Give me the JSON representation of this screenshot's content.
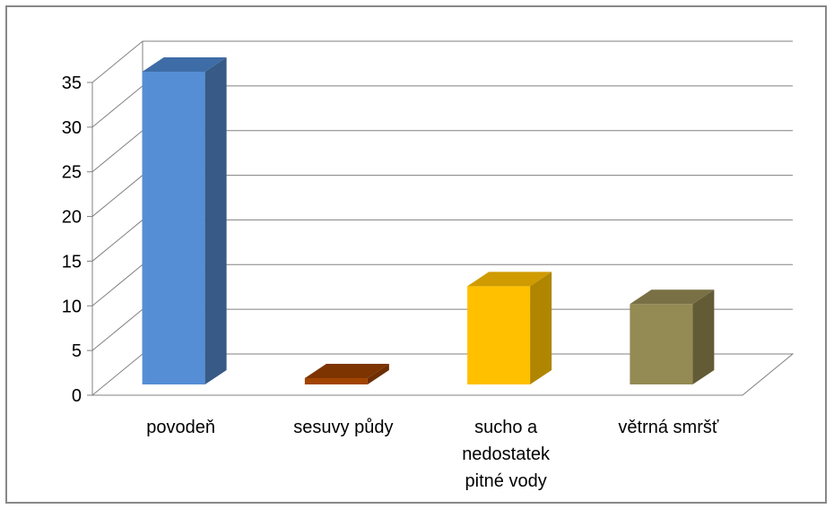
{
  "chart_data": {
    "type": "bar",
    "style": "3d-column",
    "title": "",
    "xlabel": "",
    "ylabel": "",
    "categories": [
      [
        "povodeň"
      ],
      [
        "sesuvy půdy"
      ],
      [
        "sucho a",
        "nedostatek",
        "pitné vody"
      ],
      [
        "větrná smršť"
      ]
    ],
    "values": [
      35,
      0.7,
      11,
      9
    ],
    "ylim": [
      0,
      35
    ],
    "yticks": [
      "0",
      "5",
      "10",
      "15",
      "20",
      "25",
      "30",
      "35"
    ],
    "grid": true,
    "legend": "none",
    "colors": {
      "front": [
        "#558ED5",
        "#A14400",
        "#FFC000",
        "#948A54"
      ],
      "side": [
        "#375A86",
        "#6E2E00",
        "#B08500",
        "#625B36"
      ],
      "top": [
        "#3E6CA6",
        "#7D3400",
        "#CF9B00",
        "#797045"
      ],
      "grid": "#808080",
      "axis": "#808080"
    }
  }
}
